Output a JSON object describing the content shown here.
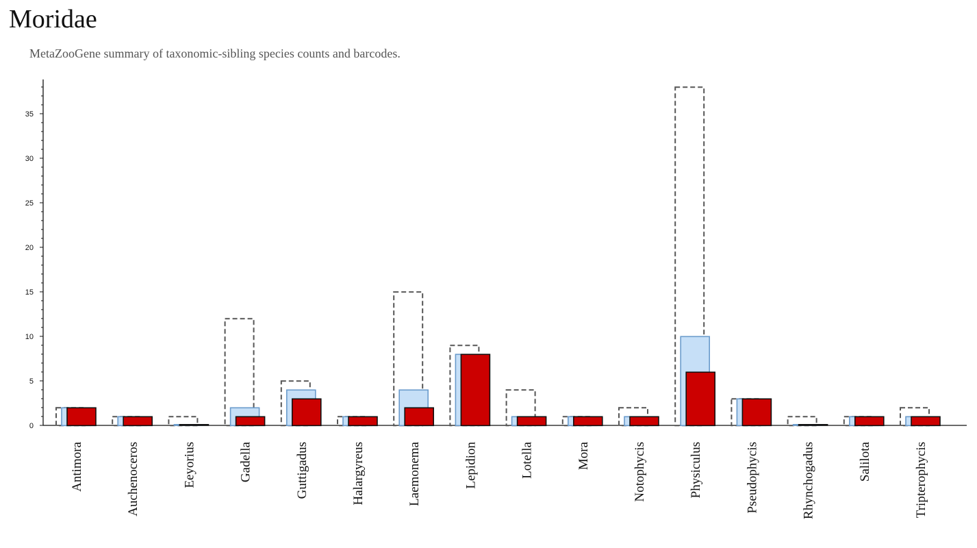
{
  "header": {
    "title": "Moridae",
    "subtitle": "MetaZooGene summary of taxonomic-sibling species counts and barcodes."
  },
  "colors": {
    "total_outline": "#555555",
    "species_fill": "#c6dff7",
    "species_stroke": "#6a9bcc",
    "barcode_fill": "#cc0000",
    "barcode_stroke": "#111111",
    "axis": "#111111"
  },
  "chart_data": {
    "type": "bar",
    "categories": [
      "Antimora",
      "Auchenoceros",
      "Eeyorius",
      "Gadella",
      "Guttigadus",
      "Halargyreus",
      "Laemonema",
      "Lepidion",
      "Lotella",
      "Mora",
      "Notophycis",
      "Physiculus",
      "Pseudophycis",
      "Rhynchogadus",
      "Salilota",
      "Tripterophycis"
    ],
    "series": [
      {
        "style": "dashed-outline",
        "values": [
          2,
          1,
          1,
          12,
          5,
          1,
          15,
          9,
          4,
          1,
          2,
          38,
          3,
          1,
          1,
          2
        ]
      },
      {
        "style": "light-blue",
        "values": [
          2,
          1,
          0,
          2,
          4,
          1,
          4,
          8,
          1,
          1,
          1,
          10,
          3,
          0,
          1,
          1
        ]
      },
      {
        "style": "red",
        "values": [
          2,
          1,
          0,
          1,
          3,
          1,
          2,
          8,
          1,
          1,
          1,
          6,
          3,
          0,
          1,
          1
        ]
      }
    ],
    "yticks": [
      0,
      5,
      10,
      15,
      20,
      25,
      30,
      35
    ],
    "ylim": [
      0,
      39
    ],
    "grid": false,
    "legend": "none"
  }
}
